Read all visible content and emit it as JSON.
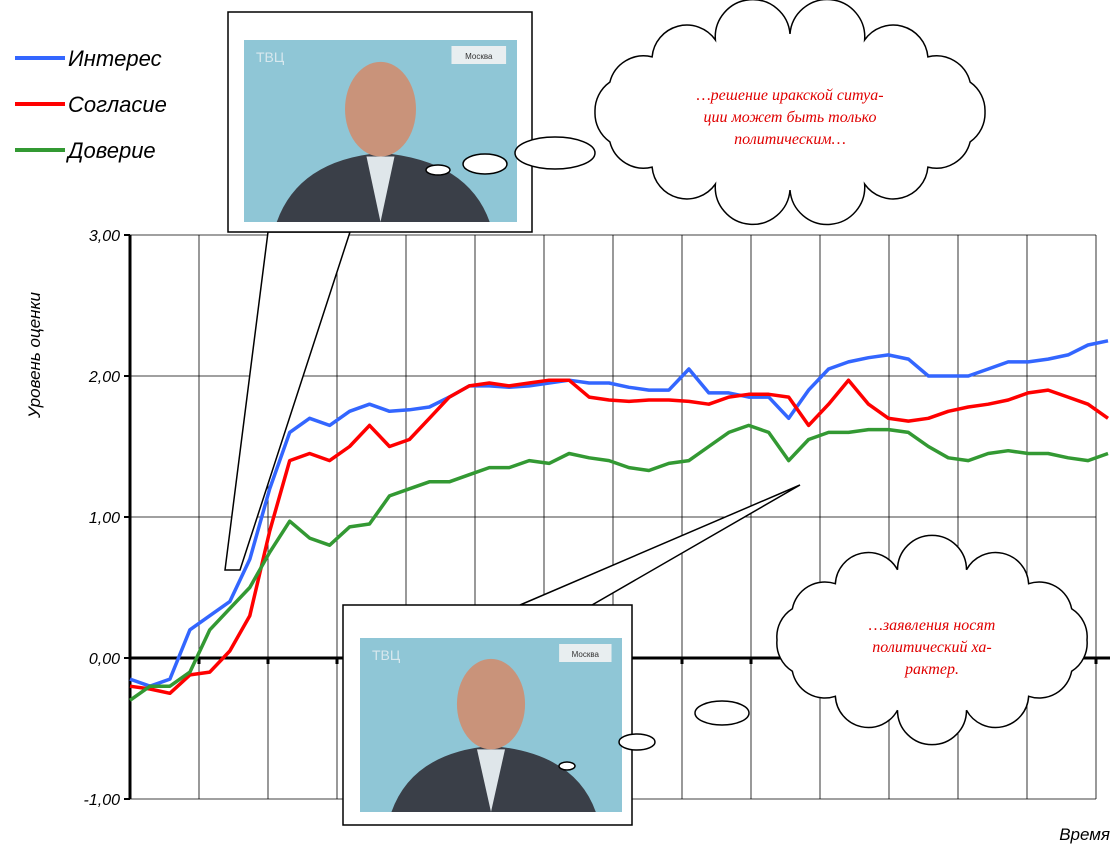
{
  "chart_data": {
    "type": "line",
    "grid": true,
    "y_label": "Уровень оценки",
    "x_label": "Время",
    "ylim": [
      -1,
      3
    ],
    "yticks": [
      {
        "value": -1,
        "label": "-1,00"
      },
      {
        "value": 0,
        "label": "0,00"
      },
      {
        "value": 1,
        "label": "1,00"
      },
      {
        "value": 2,
        "label": "2,00"
      },
      {
        "value": 3,
        "label": "3,00"
      }
    ],
    "series": [
      {
        "name": "Интерес",
        "color": "#3366ff",
        "values": [
          -0.15,
          -0.2,
          -0.15,
          0.2,
          0.3,
          0.4,
          0.7,
          1.2,
          1.6,
          1.7,
          1.65,
          1.75,
          1.8,
          1.75,
          1.76,
          1.78,
          1.85,
          1.93,
          1.93,
          1.92,
          1.93,
          1.95,
          1.97,
          1.95,
          1.95,
          1.92,
          1.9,
          1.9,
          2.05,
          1.88,
          1.88,
          1.85,
          1.85,
          1.7,
          1.9,
          2.05,
          2.1,
          2.13,
          2.15,
          2.12,
          2.0,
          2.0,
          2.0,
          2.05,
          2.1,
          2.1,
          2.12,
          2.15,
          2.22,
          2.25
        ]
      },
      {
        "name": "Согласие",
        "color": "#ff0000",
        "values": [
          -0.2,
          -0.22,
          -0.25,
          -0.12,
          -0.1,
          0.05,
          0.3,
          0.9,
          1.4,
          1.45,
          1.4,
          1.5,
          1.65,
          1.5,
          1.55,
          1.7,
          1.85,
          1.93,
          1.95,
          1.93,
          1.95,
          1.97,
          1.97,
          1.85,
          1.83,
          1.82,
          1.83,
          1.83,
          1.82,
          1.8,
          1.85,
          1.87,
          1.87,
          1.85,
          1.65,
          1.8,
          1.97,
          1.8,
          1.7,
          1.68,
          1.7,
          1.75,
          1.78,
          1.8,
          1.83,
          1.88,
          1.9,
          1.85,
          1.8,
          1.7
        ]
      },
      {
        "name": "Доверие",
        "color": "#339933",
        "values": [
          -0.3,
          -0.2,
          -0.2,
          -0.1,
          0.2,
          0.35,
          0.5,
          0.75,
          0.97,
          0.85,
          0.8,
          0.93,
          0.95,
          1.15,
          1.2,
          1.25,
          1.25,
          1.3,
          1.35,
          1.35,
          1.4,
          1.38,
          1.45,
          1.42,
          1.4,
          1.35,
          1.33,
          1.38,
          1.4,
          1.5,
          1.6,
          1.65,
          1.6,
          1.4,
          1.55,
          1.6,
          1.6,
          1.62,
          1.62,
          1.6,
          1.5,
          1.42,
          1.4,
          1.45,
          1.47,
          1.45,
          1.45,
          1.42,
          1.4,
          1.45
        ]
      }
    ]
  },
  "callouts": [
    {
      "lines": [
        "…решение иракской ситуа-",
        "ции может быть только",
        "политическим…"
      ]
    },
    {
      "lines": [
        "…заявления носят",
        "политический ха-",
        "рактер."
      ]
    }
  ],
  "photos": [
    {
      "channel": "ТВЦ",
      "city": "Москва"
    },
    {
      "channel": "ТВЦ",
      "city": "Москва"
    }
  ]
}
